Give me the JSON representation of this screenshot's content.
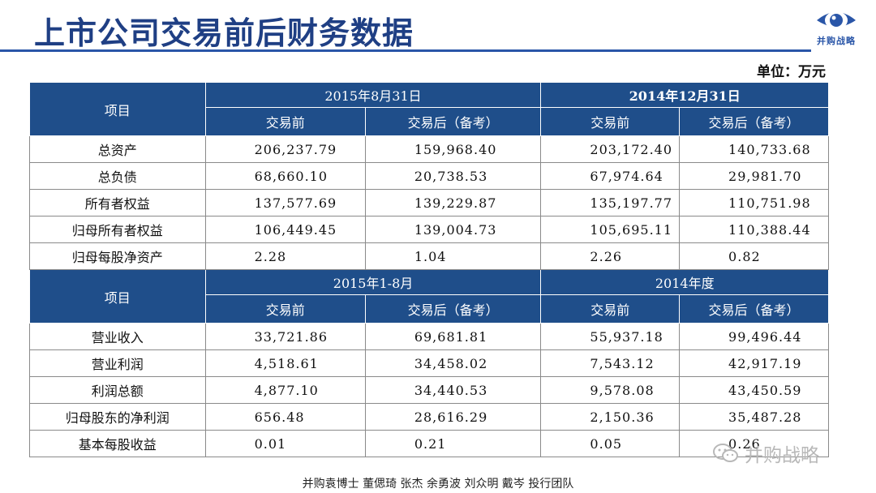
{
  "title": "上市公司交易前后财务数据",
  "logo_text": "并购战略",
  "unit": "单位：万元",
  "table1": {
    "item_header": "项目",
    "period1": "2015年8月31日",
    "period2": "2014年12月31日",
    "sub_before": "交易前",
    "sub_after": "交易后（备考）",
    "rows": [
      {
        "label": "总资产",
        "v1": "206,237.79",
        "v2": "159,968.40",
        "v3": "203,172.40",
        "v4": "140,733.68"
      },
      {
        "label": "总负债",
        "v1": "68,660.10",
        "v2": "20,738.53",
        "v3": "67,974.64",
        "v4": "29,981.70"
      },
      {
        "label": "所有者权益",
        "v1": "137,577.69",
        "v2": "139,229.87",
        "v3": "135,197.77",
        "v4": "110,751.98"
      },
      {
        "label": "归母所有者权益",
        "v1": "106,449.45",
        "v2": "139,004.73",
        "v3": "105,695.11",
        "v4": "110,388.44"
      },
      {
        "label": "归母每股净资产",
        "v1": "2.28",
        "v2": "1.04",
        "v3": "2.26",
        "v4": "0.82"
      }
    ]
  },
  "table2": {
    "item_header": "项目",
    "period1": "2015年1-8月",
    "period2": "2014年度",
    "sub_before": "交易前",
    "sub_after": "交易后（备考）",
    "rows": [
      {
        "label": "营业收入",
        "v1": "33,721.86",
        "v2": "69,681.81",
        "v3": "55,937.18",
        "v4": "99,496.44"
      },
      {
        "label": "营业利润",
        "v1": "4,518.61",
        "v2": "34,458.02",
        "v3": "7,543.12",
        "v4": "42,917.19"
      },
      {
        "label": "利润总额",
        "v1": "4,877.10",
        "v2": "34,440.53",
        "v3": "9,578.08",
        "v4": "43,450.59"
      },
      {
        "label": "归母股东的净利润",
        "v1": "656.48",
        "v2": "28,616.29",
        "v3": "2,150.36",
        "v4": "35,487.28"
      },
      {
        "label": "基本每股收益",
        "v1": "0.01",
        "v2": "0.21",
        "v3": "0.05",
        "v4": "0.26"
      }
    ]
  },
  "footer": "并购袁博士 董偲琦 张杰 余勇波 刘众明 戴岑 投行团队",
  "watermark": "并购战略",
  "colors": {
    "title": "#1f3f84",
    "header_bg": "#1f4e8a",
    "rule": "#2a56a8"
  }
}
